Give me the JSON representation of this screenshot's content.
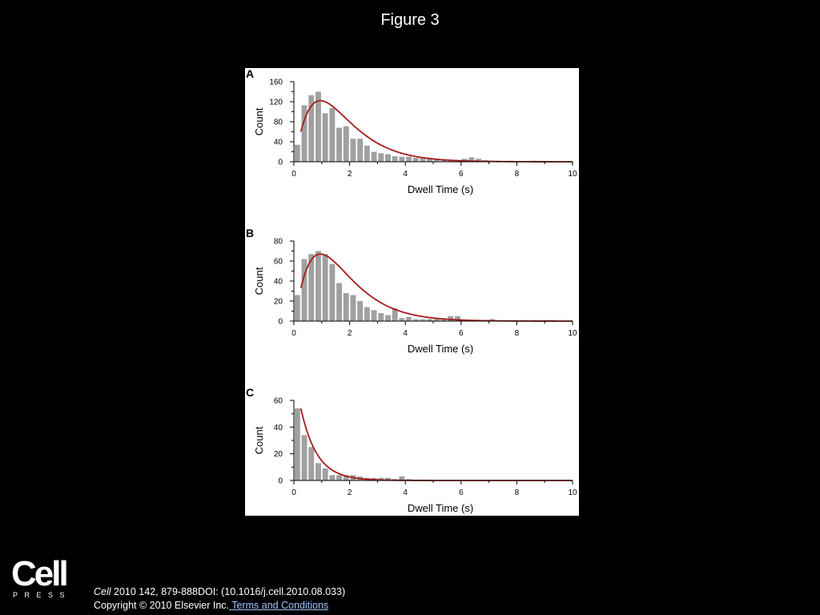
{
  "slide": {
    "title": "Figure 3"
  },
  "footer": {
    "logo": {
      "word": "Cell",
      "sub": "PRESS"
    },
    "citation_journal": "Cell",
    "citation_rest": " 2010 142, 879-888DOI: (10.1016/j.cell.2010.08.033)",
    "copyright": "Copyright © 2010 Elsevier Inc.",
    "terms_link": " Terms and Conditions"
  },
  "colors": {
    "bar": "#a0a0a0",
    "fit": "#a51c1c",
    "background": "#000000",
    "panel": "#ffffff"
  },
  "chart_data": [
    {
      "panel": "A",
      "type": "bar",
      "xlabel": "Dwell Time (s)",
      "ylabel": "Count",
      "xlim": [
        0,
        10
      ],
      "ylim": [
        0,
        160
      ],
      "xticks": [
        0,
        2,
        4,
        6,
        8,
        10
      ],
      "yticks": [
        0,
        40,
        80,
        120,
        160
      ],
      "bin_width": 0.25,
      "x": [
        0.25,
        0.5,
        0.75,
        1.0,
        1.25,
        1.5,
        1.75,
        2.0,
        2.25,
        2.5,
        2.75,
        3.0,
        3.25,
        3.5,
        3.75,
        4.0,
        4.25,
        4.5,
        4.75,
        5.0,
        5.25,
        5.5,
        5.75,
        6.0,
        6.25,
        6.5,
        6.75,
        7.0,
        7.25,
        7.5,
        7.75,
        8.0,
        8.25,
        8.5,
        8.75,
        9.0
      ],
      "values": [
        34,
        113,
        133,
        140,
        97,
        107,
        68,
        71,
        46,
        46,
        32,
        20,
        17,
        15,
        11,
        10,
        10,
        8,
        8,
        6,
        5,
        3,
        3,
        2,
        6,
        9,
        6,
        3,
        2,
        2,
        1,
        1,
        1,
        1,
        2,
        1
      ],
      "fit": {
        "model": "gamma",
        "amplitude": 122,
        "peak": 0.95,
        "shape": 2.18,
        "x_range": [
          0.25,
          10
        ]
      }
    },
    {
      "panel": "B",
      "type": "bar",
      "xlabel": "Dwell Time (s)",
      "ylabel": "Count",
      "xlim": [
        0,
        10
      ],
      "ylim": [
        0,
        80
      ],
      "xticks": [
        0,
        2,
        4,
        6,
        8,
        10
      ],
      "yticks": [
        0,
        20,
        40,
        60,
        80
      ],
      "bin_width": 0.25,
      "x": [
        0.25,
        0.5,
        0.75,
        1.0,
        1.25,
        1.5,
        1.75,
        2.0,
        2.25,
        2.5,
        2.75,
        3.0,
        3.25,
        3.5,
        3.75,
        4.0,
        4.25,
        4.5,
        4.75,
        5.0,
        5.25,
        5.5,
        5.75,
        6.0,
        6.25,
        6.5,
        6.75,
        7.0,
        7.25
      ],
      "values": [
        26,
        62,
        67,
        70,
        67,
        57,
        38,
        28,
        26,
        20,
        14,
        11,
        8,
        6,
        13,
        3,
        4,
        2,
        2,
        2,
        2,
        3,
        5,
        5,
        1,
        1,
        1,
        1,
        2
      ],
      "fit": {
        "model": "gamma",
        "amplitude": 67,
        "peak": 0.95,
        "shape": 2.18,
        "x_range": [
          0.25,
          10
        ]
      }
    },
    {
      "panel": "C",
      "type": "bar",
      "xlabel": "Dwell Time (s)",
      "ylabel": "Count",
      "xlim": [
        0,
        10
      ],
      "ylim": [
        0,
        60
      ],
      "xticks": [
        0,
        2,
        4,
        6,
        8,
        10
      ],
      "yticks": [
        0,
        20,
        40,
        60
      ],
      "bin_width": 0.25,
      "x": [
        0.25,
        0.5,
        0.75,
        1.0,
        1.25,
        1.5,
        1.75,
        2.0,
        2.25,
        2.5,
        2.75,
        3.0,
        3.25,
        3.5,
        3.75,
        4.0,
        4.25
      ],
      "values": [
        54,
        34,
        25,
        13,
        9,
        4,
        4,
        4,
        4,
        3,
        2,
        2,
        2,
        2,
        1,
        3,
        1
      ],
      "fit": {
        "model": "exponential",
        "amplitude": 54,
        "x0": 0.25,
        "tau": 0.58,
        "x_range": [
          0.25,
          10
        ]
      }
    }
  ]
}
